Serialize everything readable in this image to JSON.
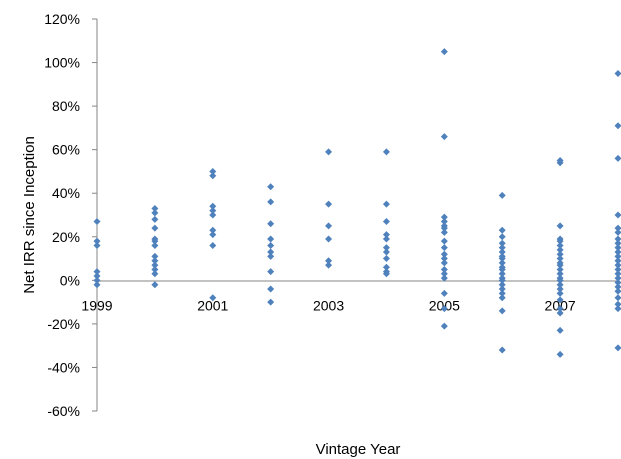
{
  "chart_data": {
    "type": "scatter",
    "title": "",
    "xlabel": "Vintage Year",
    "ylabel": "Net IRR since Inception",
    "x_tick_labels": [
      "1999",
      "2001",
      "2003",
      "2005",
      "2007"
    ],
    "y_tick_labels": [
      "120%",
      "100%",
      "80%",
      "60%",
      "40%",
      "20%",
      "0%",
      "-20%",
      "-40%",
      "-60%"
    ],
    "xlim": [
      1999,
      2008
    ],
    "ylim": [
      -60,
      120
    ],
    "grid": false,
    "legend": "none",
    "marker_color": "#4F81BD",
    "series": [
      {
        "points": [
          {
            "x": 1999,
            "y": 27
          },
          {
            "x": 1999,
            "y": 18
          },
          {
            "x": 1999,
            "y": 16
          },
          {
            "x": 1999,
            "y": 4
          },
          {
            "x": 1999,
            "y": 2
          },
          {
            "x": 1999,
            "y": 0
          },
          {
            "x": 1999,
            "y": -2
          },
          {
            "x": 2000,
            "y": 33
          },
          {
            "x": 2000,
            "y": 31
          },
          {
            "x": 2000,
            "y": 28
          },
          {
            "x": 2000,
            "y": 24
          },
          {
            "x": 2000,
            "y": 19
          },
          {
            "x": 2000,
            "y": 18
          },
          {
            "x": 2000,
            "y": 16
          },
          {
            "x": 2000,
            "y": 11
          },
          {
            "x": 2000,
            "y": 9
          },
          {
            "x": 2000,
            "y": 7
          },
          {
            "x": 2000,
            "y": 5
          },
          {
            "x": 2000,
            "y": 3
          },
          {
            "x": 2000,
            "y": -2
          },
          {
            "x": 2001,
            "y": 50
          },
          {
            "x": 2001,
            "y": 48
          },
          {
            "x": 2001,
            "y": 34
          },
          {
            "x": 2001,
            "y": 32
          },
          {
            "x": 2001,
            "y": 30
          },
          {
            "x": 2001,
            "y": 23
          },
          {
            "x": 2001,
            "y": 21
          },
          {
            "x": 2001,
            "y": 16
          },
          {
            "x": 2001,
            "y": -8
          },
          {
            "x": 2002,
            "y": 43
          },
          {
            "x": 2002,
            "y": 36
          },
          {
            "x": 2002,
            "y": 26
          },
          {
            "x": 2002,
            "y": 19
          },
          {
            "x": 2002,
            "y": 16
          },
          {
            "x": 2002,
            "y": 13
          },
          {
            "x": 2002,
            "y": 11
          },
          {
            "x": 2002,
            "y": 4
          },
          {
            "x": 2002,
            "y": -4
          },
          {
            "x": 2002,
            "y": -10
          },
          {
            "x": 2003,
            "y": 59
          },
          {
            "x": 2003,
            "y": 35
          },
          {
            "x": 2003,
            "y": 25
          },
          {
            "x": 2003,
            "y": 19
          },
          {
            "x": 2003,
            "y": 9
          },
          {
            "x": 2003,
            "y": 7
          },
          {
            "x": 2004,
            "y": 59
          },
          {
            "x": 2004,
            "y": 35
          },
          {
            "x": 2004,
            "y": 27
          },
          {
            "x": 2004,
            "y": 21
          },
          {
            "x": 2004,
            "y": 19
          },
          {
            "x": 2004,
            "y": 15
          },
          {
            "x": 2004,
            "y": 13
          },
          {
            "x": 2004,
            "y": 10
          },
          {
            "x": 2004,
            "y": 6
          },
          {
            "x": 2004,
            "y": 4
          },
          {
            "x": 2004,
            "y": 3
          },
          {
            "x": 2005,
            "y": 105
          },
          {
            "x": 2005,
            "y": 66
          },
          {
            "x": 2005,
            "y": 29
          },
          {
            "x": 2005,
            "y": 27
          },
          {
            "x": 2005,
            "y": 25
          },
          {
            "x": 2005,
            "y": 24
          },
          {
            "x": 2005,
            "y": 22
          },
          {
            "x": 2005,
            "y": 18
          },
          {
            "x": 2005,
            "y": 15
          },
          {
            "x": 2005,
            "y": 12
          },
          {
            "x": 2005,
            "y": 10
          },
          {
            "x": 2005,
            "y": 8
          },
          {
            "x": 2005,
            "y": 5
          },
          {
            "x": 2005,
            "y": 3
          },
          {
            "x": 2005,
            "y": 1
          },
          {
            "x": 2005,
            "y": -6
          },
          {
            "x": 2005,
            "y": -13
          },
          {
            "x": 2005,
            "y": -21
          },
          {
            "x": 2006,
            "y": 39
          },
          {
            "x": 2006,
            "y": 23
          },
          {
            "x": 2006,
            "y": 20
          },
          {
            "x": 2006,
            "y": 17
          },
          {
            "x": 2006,
            "y": 15
          },
          {
            "x": 2006,
            "y": 13
          },
          {
            "x": 2006,
            "y": 11
          },
          {
            "x": 2006,
            "y": 10
          },
          {
            "x": 2006,
            "y": 8
          },
          {
            "x": 2006,
            "y": 6
          },
          {
            "x": 2006,
            "y": 5
          },
          {
            "x": 2006,
            "y": 3
          },
          {
            "x": 2006,
            "y": 1
          },
          {
            "x": 2006,
            "y": 0
          },
          {
            "x": 2006,
            "y": -2
          },
          {
            "x": 2006,
            "y": -4
          },
          {
            "x": 2006,
            "y": -6
          },
          {
            "x": 2006,
            "y": -8
          },
          {
            "x": 2006,
            "y": -14
          },
          {
            "x": 2006,
            "y": -32
          },
          {
            "x": 2007,
            "y": 55
          },
          {
            "x": 2007,
            "y": 54
          },
          {
            "x": 2007,
            "y": 25
          },
          {
            "x": 2007,
            "y": 19
          },
          {
            "x": 2007,
            "y": 18
          },
          {
            "x": 2007,
            "y": 16
          },
          {
            "x": 2007,
            "y": 14
          },
          {
            "x": 2007,
            "y": 12
          },
          {
            "x": 2007,
            "y": 10
          },
          {
            "x": 2007,
            "y": 8
          },
          {
            "x": 2007,
            "y": 7
          },
          {
            "x": 2007,
            "y": 5
          },
          {
            "x": 2007,
            "y": 3
          },
          {
            "x": 2007,
            "y": 1
          },
          {
            "x": 2007,
            "y": 0
          },
          {
            "x": 2007,
            "y": -2
          },
          {
            "x": 2007,
            "y": -4
          },
          {
            "x": 2007,
            "y": -6
          },
          {
            "x": 2007,
            "y": -9
          },
          {
            "x": 2007,
            "y": -13
          },
          {
            "x": 2007,
            "y": -15
          },
          {
            "x": 2007,
            "y": -23
          },
          {
            "x": 2007,
            "y": -34
          },
          {
            "x": 2008,
            "y": 95
          },
          {
            "x": 2008,
            "y": 71
          },
          {
            "x": 2008,
            "y": 56
          },
          {
            "x": 2008,
            "y": 30
          },
          {
            "x": 2008,
            "y": 24
          },
          {
            "x": 2008,
            "y": 22
          },
          {
            "x": 2008,
            "y": 19
          },
          {
            "x": 2008,
            "y": 17
          },
          {
            "x": 2008,
            "y": 15
          },
          {
            "x": 2008,
            "y": 13
          },
          {
            "x": 2008,
            "y": 11
          },
          {
            "x": 2008,
            "y": 9
          },
          {
            "x": 2008,
            "y": 7
          },
          {
            "x": 2008,
            "y": 5
          },
          {
            "x": 2008,
            "y": 3
          },
          {
            "x": 2008,
            "y": 1
          },
          {
            "x": 2008,
            "y": -1
          },
          {
            "x": 2008,
            "y": -3
          },
          {
            "x": 2008,
            "y": -5
          },
          {
            "x": 2008,
            "y": -8
          },
          {
            "x": 2008,
            "y": -11
          },
          {
            "x": 2008,
            "y": -13
          },
          {
            "x": 2008,
            "y": -31
          }
        ]
      }
    ]
  }
}
